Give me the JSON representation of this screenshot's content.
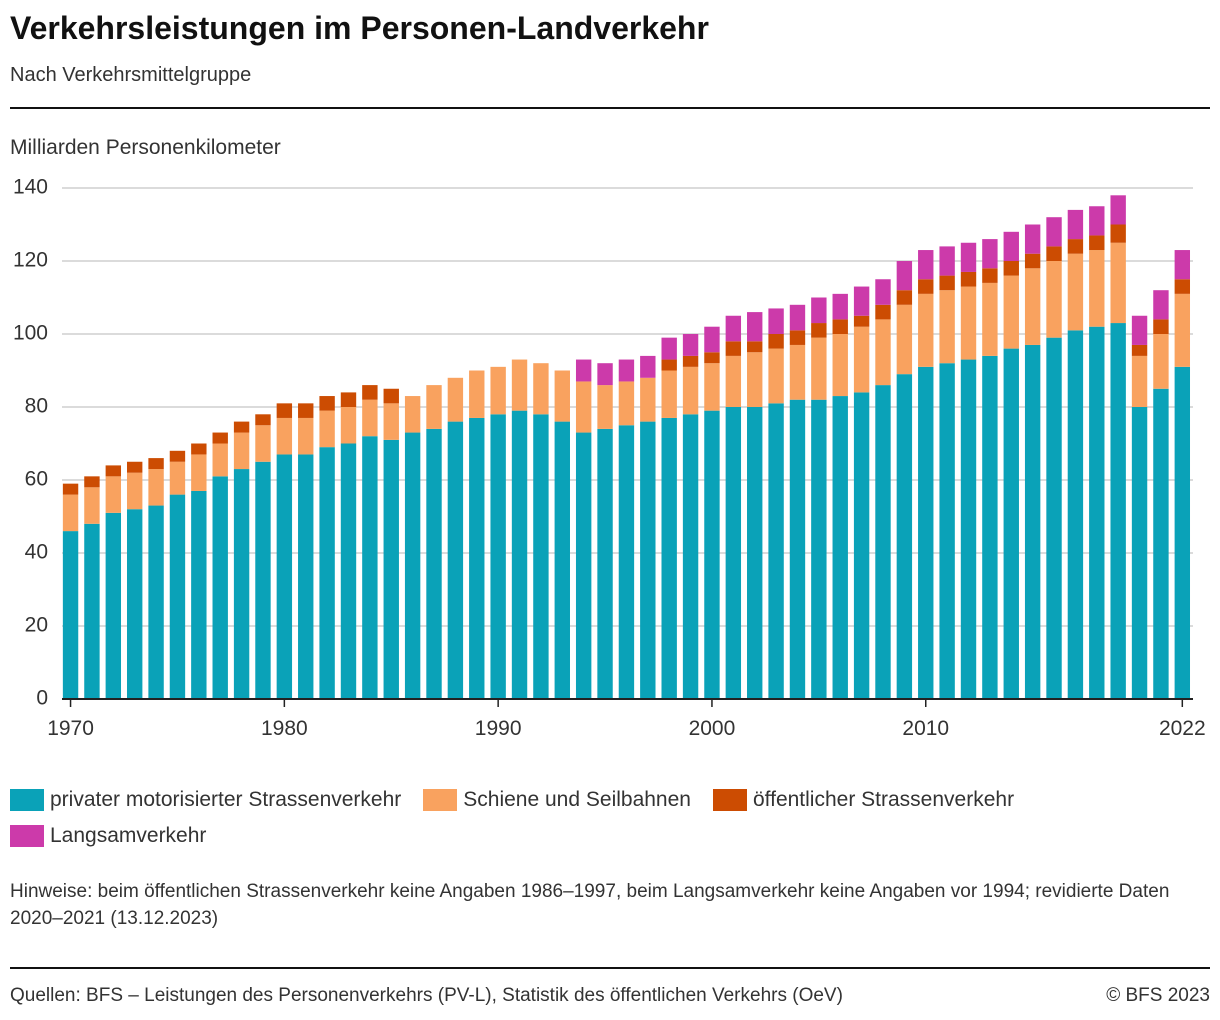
{
  "chart_data": {
    "type": "stacked-bar",
    "title": "Verkehrsleistungen im Personen-Landverkehr",
    "subtitle": "Nach Verkehrsmittelgruppe",
    "y_label": "Milliarden Personenkilometer",
    "x": [
      1970,
      1971,
      1972,
      1973,
      1974,
      1975,
      1976,
      1977,
      1978,
      1979,
      1980,
      1981,
      1982,
      1983,
      1984,
      1985,
      1986,
      1987,
      1988,
      1989,
      1990,
      1991,
      1992,
      1993,
      1994,
      1995,
      1996,
      1997,
      1998,
      1999,
      2000,
      2001,
      2002,
      2003,
      2004,
      2005,
      2006,
      2007,
      2008,
      2009,
      2010,
      2011,
      2012,
      2013,
      2014,
      2015,
      2016,
      2017,
      2018,
      2019,
      2020,
      2021,
      2022
    ],
    "xlim": [
      1969.6,
      2022.5
    ],
    "xticks": [
      1970,
      1980,
      1990,
      2000,
      2010,
      2022
    ],
    "ylim": [
      0,
      140
    ],
    "yticks": [
      0,
      20,
      40,
      60,
      80,
      100,
      120,
      140
    ],
    "grid": true,
    "series": [
      {
        "name": "privater motorisierter Strassenverkehr",
        "color": "#0aa2b8",
        "values": [
          46,
          48,
          51,
          52,
          53,
          56,
          57,
          61,
          63,
          65,
          67,
          67,
          69,
          70,
          72,
          71,
          73,
          74,
          76,
          77,
          78,
          79,
          78,
          76,
          73,
          74,
          75,
          76,
          77,
          78,
          79,
          80,
          80,
          81,
          82,
          82,
          83,
          84,
          86,
          89,
          91,
          92,
          93,
          94,
          96,
          97,
          99,
          101,
          102,
          103,
          80,
          85,
          91
        ]
      },
      {
        "name": "Schiene und Seilbahnen",
        "color": "#f9a25f",
        "values": [
          10,
          10,
          10,
          10,
          10,
          9,
          10,
          9,
          10,
          10,
          10,
          10,
          10,
          10,
          10,
          10,
          10,
          12,
          12,
          13,
          13,
          14,
          14,
          14,
          14,
          12,
          12,
          12,
          13,
          13,
          13,
          14,
          15,
          15,
          15,
          17,
          17,
          18,
          18,
          19,
          20,
          20,
          20,
          20,
          20,
          21,
          21,
          21,
          21,
          22,
          14,
          15,
          20
        ]
      },
      {
        "name": "öffentlicher Strassenverkehr",
        "color": "#cc4c02",
        "values": [
          3,
          3,
          3,
          3,
          3,
          3,
          3,
          3,
          3,
          3,
          4,
          4,
          4,
          4,
          4,
          4,
          null,
          null,
          null,
          null,
          null,
          null,
          null,
          null,
          null,
          null,
          null,
          null,
          3,
          3,
          3,
          4,
          3,
          4,
          4,
          4,
          4,
          3,
          4,
          4,
          4,
          4,
          4,
          4,
          4,
          4,
          4,
          4,
          4,
          5,
          3,
          4,
          4
        ]
      },
      {
        "name": "Langsamverkehr",
        "color": "#cc3aaa",
        "values": [
          null,
          null,
          null,
          null,
          null,
          null,
          null,
          null,
          null,
          null,
          null,
          null,
          null,
          null,
          null,
          null,
          null,
          null,
          null,
          null,
          null,
          null,
          null,
          null,
          6,
          6,
          6,
          6,
          6,
          6,
          7,
          7,
          8,
          7,
          7,
          7,
          7,
          8,
          7,
          8,
          8,
          8,
          8,
          8,
          8,
          8,
          8,
          8,
          8,
          8,
          8,
          8,
          8
        ]
      }
    ],
    "notes": "Hinweise: beim öffentlichen Strassenverkehr keine Angaben 1986–1997, beim Langsamverkehr keine Angaben vor 1994; revidierte Daten 2020–2021 (13.12.2023)",
    "source": "Quellen: BFS – Leistungen des Personenverkehrs (PV-L), Statistik des öffentlichen Verkehrs (OeV)",
    "copyright": "© BFS 2023"
  }
}
